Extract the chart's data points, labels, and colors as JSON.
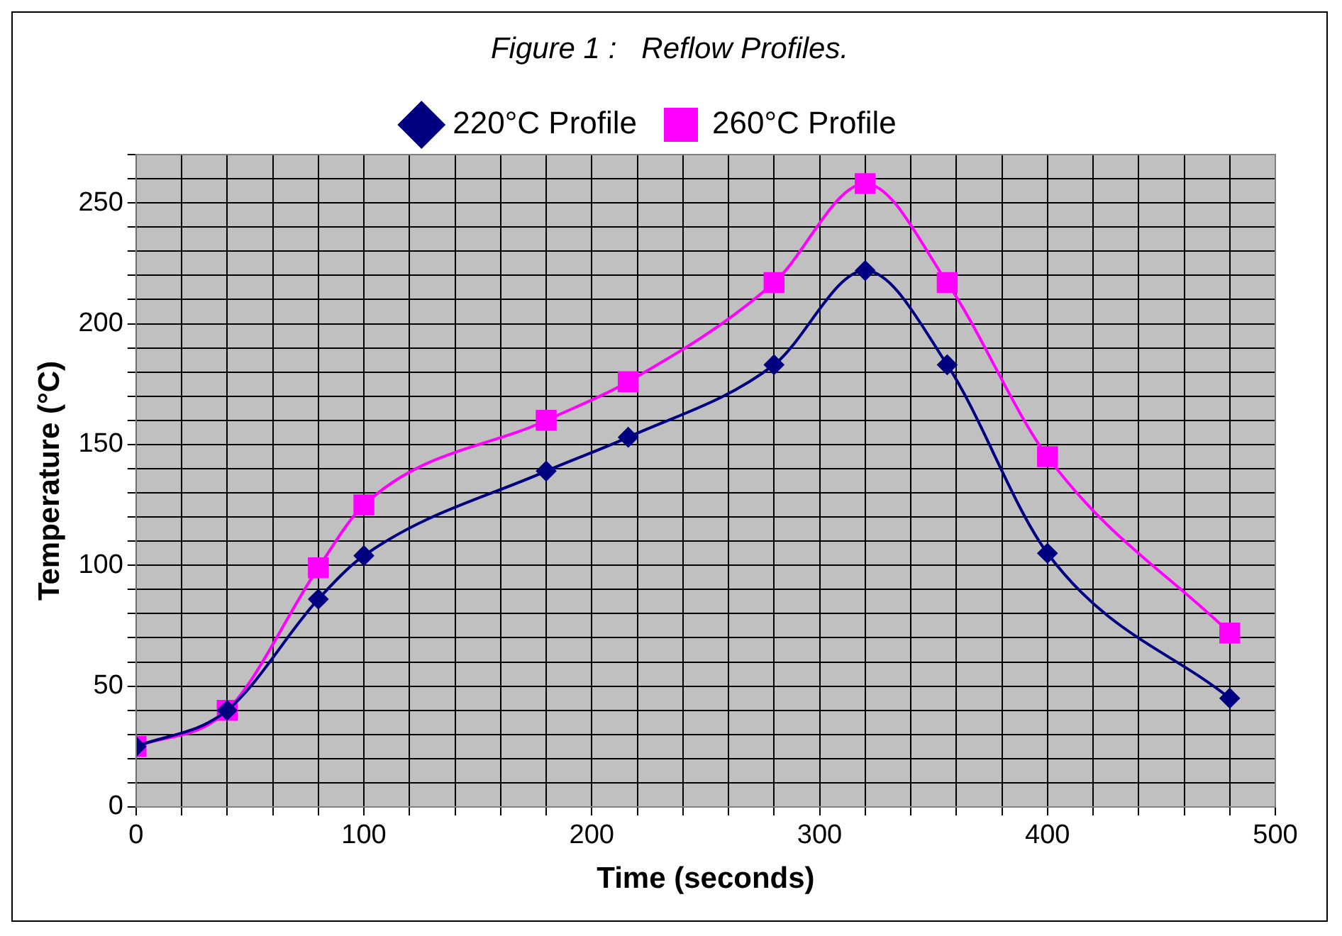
{
  "chart_data": {
    "type": "line",
    "title": "Figure 1 :   Reflow Profiles.",
    "xlabel": "Time (seconds)",
    "ylabel": "Temperature (°C)",
    "xlim": [
      0,
      500
    ],
    "ylim": [
      0,
      270
    ],
    "xticks": [
      0,
      {
        "value": 20,
        "label": null
      },
      {
        "value": 40,
        "label": null
      },
      {
        "value": 60,
        "label": null
      },
      {
        "value": 80,
        "label": null
      },
      100,
      {
        "value": 120,
        "label": null
      },
      {
        "value": 140,
        "label": null
      },
      {
        "value": 160,
        "label": null
      },
      {
        "value": 180,
        "label": null
      },
      200,
      {
        "value": 220,
        "label": null
      },
      {
        "value": 240,
        "label": null
      },
      {
        "value": 260,
        "label": null
      },
      {
        "value": 280,
        "label": null
      },
      300,
      {
        "value": 320,
        "label": null
      },
      {
        "value": 340,
        "label": null
      },
      {
        "value": 360,
        "label": null
      },
      {
        "value": 380,
        "label": null
      },
      400,
      {
        "value": 420,
        "label": null
      },
      {
        "value": 440,
        "label": null
      },
      {
        "value": 460,
        "label": null
      },
      {
        "value": 480,
        "label": null
      },
      500
    ],
    "yticks": [
      0,
      {
        "value": 10,
        "label": null
      },
      {
        "value": 20,
        "label": null
      },
      {
        "value": 30,
        "label": null
      },
      {
        "value": 40,
        "label": null
      },
      50,
      {
        "value": 60,
        "label": null
      },
      {
        "value": 70,
        "label": null
      },
      {
        "value": 80,
        "label": null
      },
      {
        "value": 90,
        "label": null
      },
      100,
      {
        "value": 110,
        "label": null
      },
      {
        "value": 120,
        "label": null
      },
      {
        "value": 130,
        "label": null
      },
      {
        "value": 140,
        "label": null
      },
      150,
      {
        "value": 160,
        "label": null
      },
      {
        "value": 170,
        "label": null
      },
      {
        "value": 180,
        "label": null
      },
      {
        "value": 190,
        "label": null
      },
      200,
      {
        "value": 210,
        "label": null
      },
      {
        "value": 220,
        "label": null
      },
      {
        "value": 230,
        "label": null
      },
      {
        "value": 240,
        "label": null
      },
      250,
      {
        "value": 260,
        "label": null
      },
      {
        "value": 270,
        "label": null
      }
    ],
    "grid": true,
    "legend": "top",
    "series": [
      {
        "name": "220°C Profile",
        "color": "#000080",
        "marker": "diamond",
        "x": [
          0,
          40,
          80,
          100,
          180,
          216,
          280,
          320,
          356,
          400,
          480
        ],
        "values": [
          25,
          40,
          86,
          104,
          139,
          153,
          183,
          222,
          183,
          105,
          45
        ]
      },
      {
        "name": "260°C Profile",
        "color": "#ff00ff",
        "marker": "square",
        "x": [
          0,
          40,
          80,
          100,
          180,
          216,
          280,
          320,
          356,
          400,
          480
        ],
        "values": [
          25,
          40,
          99,
          125,
          160,
          176,
          217,
          258,
          217,
          145,
          72
        ]
      }
    ]
  }
}
